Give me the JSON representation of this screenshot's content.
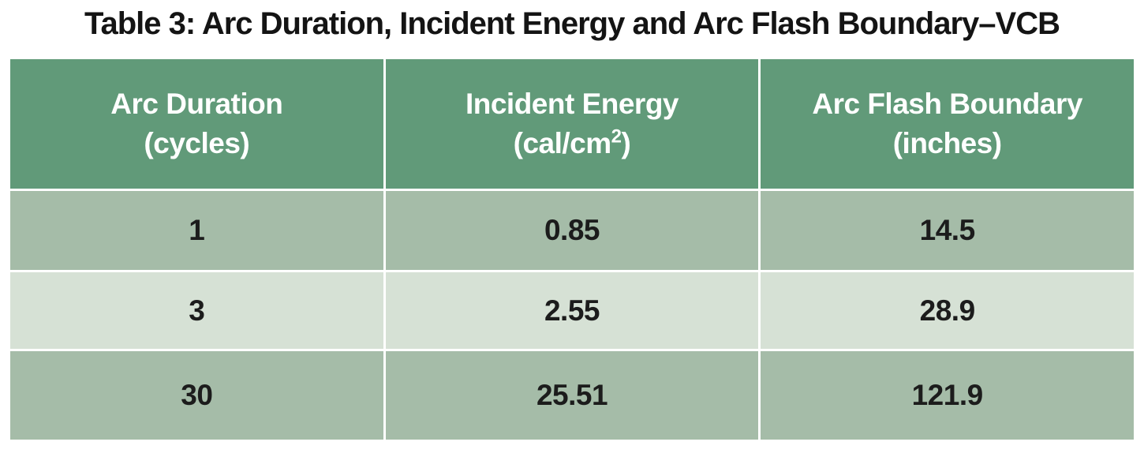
{
  "page": {
    "title": "Table 3: Arc Duration, Incident Energy and Arc Flash Boundary–VCB"
  },
  "colors": {
    "header_bg": "#619a79",
    "header_text": "#ffffff",
    "row_odd_bg": "#a5bca8",
    "row_even_bg": "#d6e1d5",
    "body_text": "#1c1c1c",
    "gridline": "#ffffff",
    "title_text": "#141414"
  },
  "table": {
    "headers": [
      {
        "line1": "Arc Duration",
        "line2": "(cycles)"
      },
      {
        "line1": "Incident Energy",
        "line2_prefix": "(cal/cm",
        "line2_sup": "2",
        "line2_suffix": ")"
      },
      {
        "line1": "Arc Flash Boundary",
        "line2": "(inches)"
      }
    ],
    "rows": [
      {
        "arc_duration": "1",
        "incident_energy": "0.85",
        "arc_flash_boundary": "14.5"
      },
      {
        "arc_duration": "3",
        "incident_energy": "2.55",
        "arc_flash_boundary": "28.9"
      },
      {
        "arc_duration": "30",
        "incident_energy": "25.51",
        "arc_flash_boundary": "121.9"
      }
    ]
  },
  "chart_data": {
    "type": "table",
    "title": "Table 3: Arc Duration, Incident Energy and Arc Flash Boundary–VCB",
    "columns": [
      "Arc Duration (cycles)",
      "Incident Energy (cal/cm²)",
      "Arc Flash Boundary (inches)"
    ],
    "rows": [
      [
        1,
        0.85,
        14.5
      ],
      [
        3,
        2.55,
        28.9
      ],
      [
        30,
        25.51,
        121.9
      ]
    ],
    "layout_hints": {
      "header_style": "sage green background, white bold text",
      "row_striping": "odd rows muted gray-green, even rows pale green",
      "gridlines": "white 3px separators",
      "title_position": "top center, bold black"
    }
  }
}
